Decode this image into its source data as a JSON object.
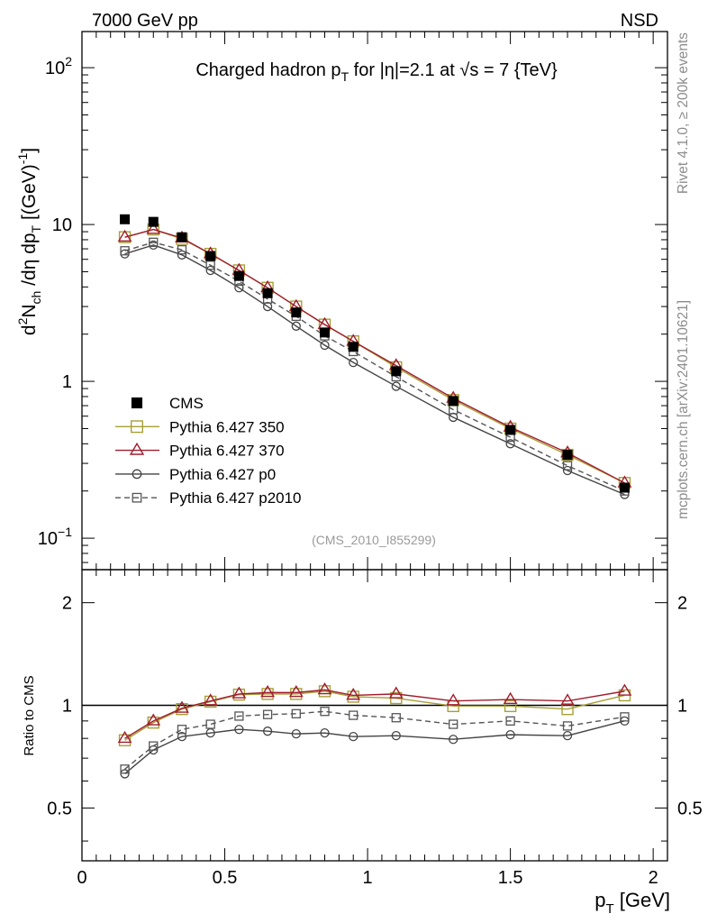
{
  "chart_data": [
    {
      "type": "line",
      "panel": "main",
      "title": "Charged hadron p_T for |η|=2.1 at √s = 7 {TeV}",
      "title_parts": {
        "pre": "Charged hadron p",
        "sub": "T",
        "mid": " for |η|=2.1 at ",
        "rad": "√",
        "post": "s = 7 {TeV}"
      },
      "top_left_label": "7000 GeV pp",
      "top_right_label": "NSD",
      "analysis_label": "(CMS_2010_I855299)",
      "ylabel": "d²N_ch/dη dp_T [(GeV)⁻¹]",
      "ylabel_parts": {
        "a": "d",
        "a_sup": "2",
        "b": "N",
        "b_sub": "ch",
        "c": " /dη  dp",
        "c_sub": "T",
        "d": " [(GeV)",
        "d_sup": "-1",
        "e": "]"
      },
      "xlabel": "p_T [GeV]",
      "xlabel_parts": {
        "pre": "p",
        "sub": "T",
        "post": " [GeV]"
      },
      "yscale": "log",
      "ylim": [
        0.063,
        170
      ],
      "xlim": [
        0,
        2.05
      ],
      "y_tick_labels": [
        {
          "value": 0.1,
          "base": "10",
          "exp": "−1"
        },
        {
          "value": 1,
          "text": "1"
        },
        {
          "value": 10,
          "text": "10"
        },
        {
          "value": 100,
          "base": "10",
          "exp": "2"
        }
      ],
      "x": [
        0.15,
        0.25,
        0.35,
        0.45,
        0.55,
        0.65,
        0.75,
        0.85,
        0.95,
        1.1,
        1.3,
        1.5,
        1.7,
        1.9
      ],
      "series": [
        {
          "name": "CMS",
          "color": "#000000",
          "marker": "filled-square",
          "line": "none",
          "values": [
            10.8,
            10.4,
            8.3,
            6.3,
            4.7,
            3.65,
            2.75,
            2.05,
            1.66,
            1.16,
            0.75,
            0.49,
            0.34,
            0.21
          ]
        },
        {
          "name": "Pythia 6.427 350",
          "color": "#a7a038",
          "marker": "open-square",
          "line": "solid",
          "values": [
            8.3,
            9.3,
            8.1,
            6.5,
            5.1,
            3.95,
            3.0,
            2.3,
            1.8,
            1.23,
            0.76,
            0.5,
            0.34,
            0.225
          ]
        },
        {
          "name": "Pythia 6.427 370",
          "color": "#a01c2c",
          "marker": "open-triangle",
          "line": "solid",
          "values": [
            8.3,
            9.3,
            8.2,
            6.5,
            5.1,
            3.95,
            3.0,
            2.3,
            1.8,
            1.26,
            0.78,
            0.51,
            0.35,
            0.225
          ]
        },
        {
          "name": "Pythia 6.427 p0",
          "color": "#444444",
          "marker": "open-circle",
          "line": "solid",
          "values": [
            6.5,
            7.4,
            6.4,
            5.1,
            3.95,
            3.0,
            2.25,
            1.7,
            1.32,
            0.93,
            0.59,
            0.4,
            0.27,
            0.19
          ]
        },
        {
          "name": "Pythia 6.427 p2010",
          "color": "#555555",
          "marker": "open-square-small",
          "line": "dashed",
          "values": [
            6.8,
            7.7,
            6.9,
            5.5,
            4.35,
            3.35,
            2.6,
            1.95,
            1.55,
            1.07,
            0.66,
            0.44,
            0.29,
            0.2
          ]
        }
      ]
    },
    {
      "type": "line",
      "panel": "ratio",
      "ylabel": "Ratio to CMS",
      "ylim": [
        0.35,
        2.5
      ],
      "yscale": "log",
      "xlim": [
        0,
        2.05
      ],
      "reference_line": 1,
      "y_tick_labels": [
        {
          "value": 0.5,
          "text": "0.5"
        },
        {
          "value": 1,
          "text": "1"
        },
        {
          "value": 2,
          "text": "2"
        }
      ],
      "x_tick_labels": [
        {
          "value": 0,
          "text": "0"
        },
        {
          "value": 0.5,
          "text": "0.5"
        },
        {
          "value": 1,
          "text": "1"
        },
        {
          "value": 1.5,
          "text": "1.5"
        },
        {
          "value": 2,
          "text": "2"
        }
      ],
      "x": [
        0.15,
        0.25,
        0.35,
        0.45,
        0.55,
        0.65,
        0.75,
        0.85,
        0.95,
        1.1,
        1.3,
        1.5,
        1.7,
        1.9
      ],
      "series": [
        {
          "name": "Pythia 6.427 350",
          "color": "#a7a038",
          "marker": "open-square",
          "line": "solid",
          "values": [
            0.79,
            0.89,
            0.975,
            1.025,
            1.075,
            1.08,
            1.08,
            1.1,
            1.06,
            1.05,
            0.995,
            0.995,
            0.975,
            1.07
          ]
        },
        {
          "name": "Pythia 6.427 370",
          "color": "#a01c2c",
          "marker": "open-triangle",
          "line": "solid",
          "values": [
            0.8,
            0.9,
            0.98,
            1.03,
            1.08,
            1.09,
            1.09,
            1.11,
            1.07,
            1.08,
            1.03,
            1.04,
            1.03,
            1.1
          ]
        },
        {
          "name": "Pythia 6.427 p0",
          "color": "#444444",
          "marker": "open-circle",
          "line": "solid",
          "values": [
            0.63,
            0.74,
            0.81,
            0.83,
            0.85,
            0.84,
            0.825,
            0.83,
            0.81,
            0.815,
            0.795,
            0.82,
            0.815,
            0.9
          ]
        },
        {
          "name": "Pythia 6.427 p2010",
          "color": "#555555",
          "marker": "open-square-small",
          "line": "dashed",
          "values": [
            0.65,
            0.76,
            0.85,
            0.88,
            0.93,
            0.94,
            0.945,
            0.96,
            0.935,
            0.92,
            0.88,
            0.9,
            0.87,
            0.925
          ]
        }
      ]
    }
  ],
  "side_labels": {
    "events": "Rivet 4.1.0, ≥ 200k events",
    "source": "mcplots.cern.ch [arXiv:2401.10621]"
  }
}
